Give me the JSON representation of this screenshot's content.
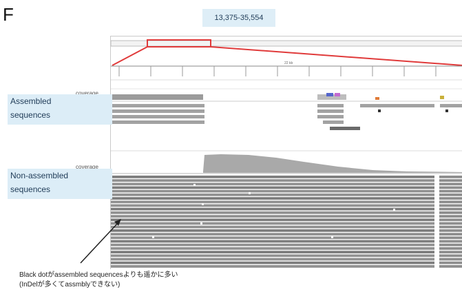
{
  "panel_letter": "F",
  "range_label": "13,375-35,554",
  "tracks": {
    "assembled": {
      "coverage_label": "coverage",
      "label_line1": "Assembled",
      "label_line2": "sequences"
    },
    "non_assembled": {
      "coverage_label": "coverage",
      "label_line1": "Non-assembled",
      "label_line2": "sequences"
    }
  },
  "annotation": {
    "line1": "Black dotがassembled sequencesよりも遥かに多い",
    "line2": "(InDelが多くてassmblyできない)"
  },
  "colors": {
    "highlight": "#e03a3a",
    "label_bg": "#dcedf7",
    "read_gray": "#8a8a8a",
    "coverage_gray": "#a9a9a9"
  }
}
